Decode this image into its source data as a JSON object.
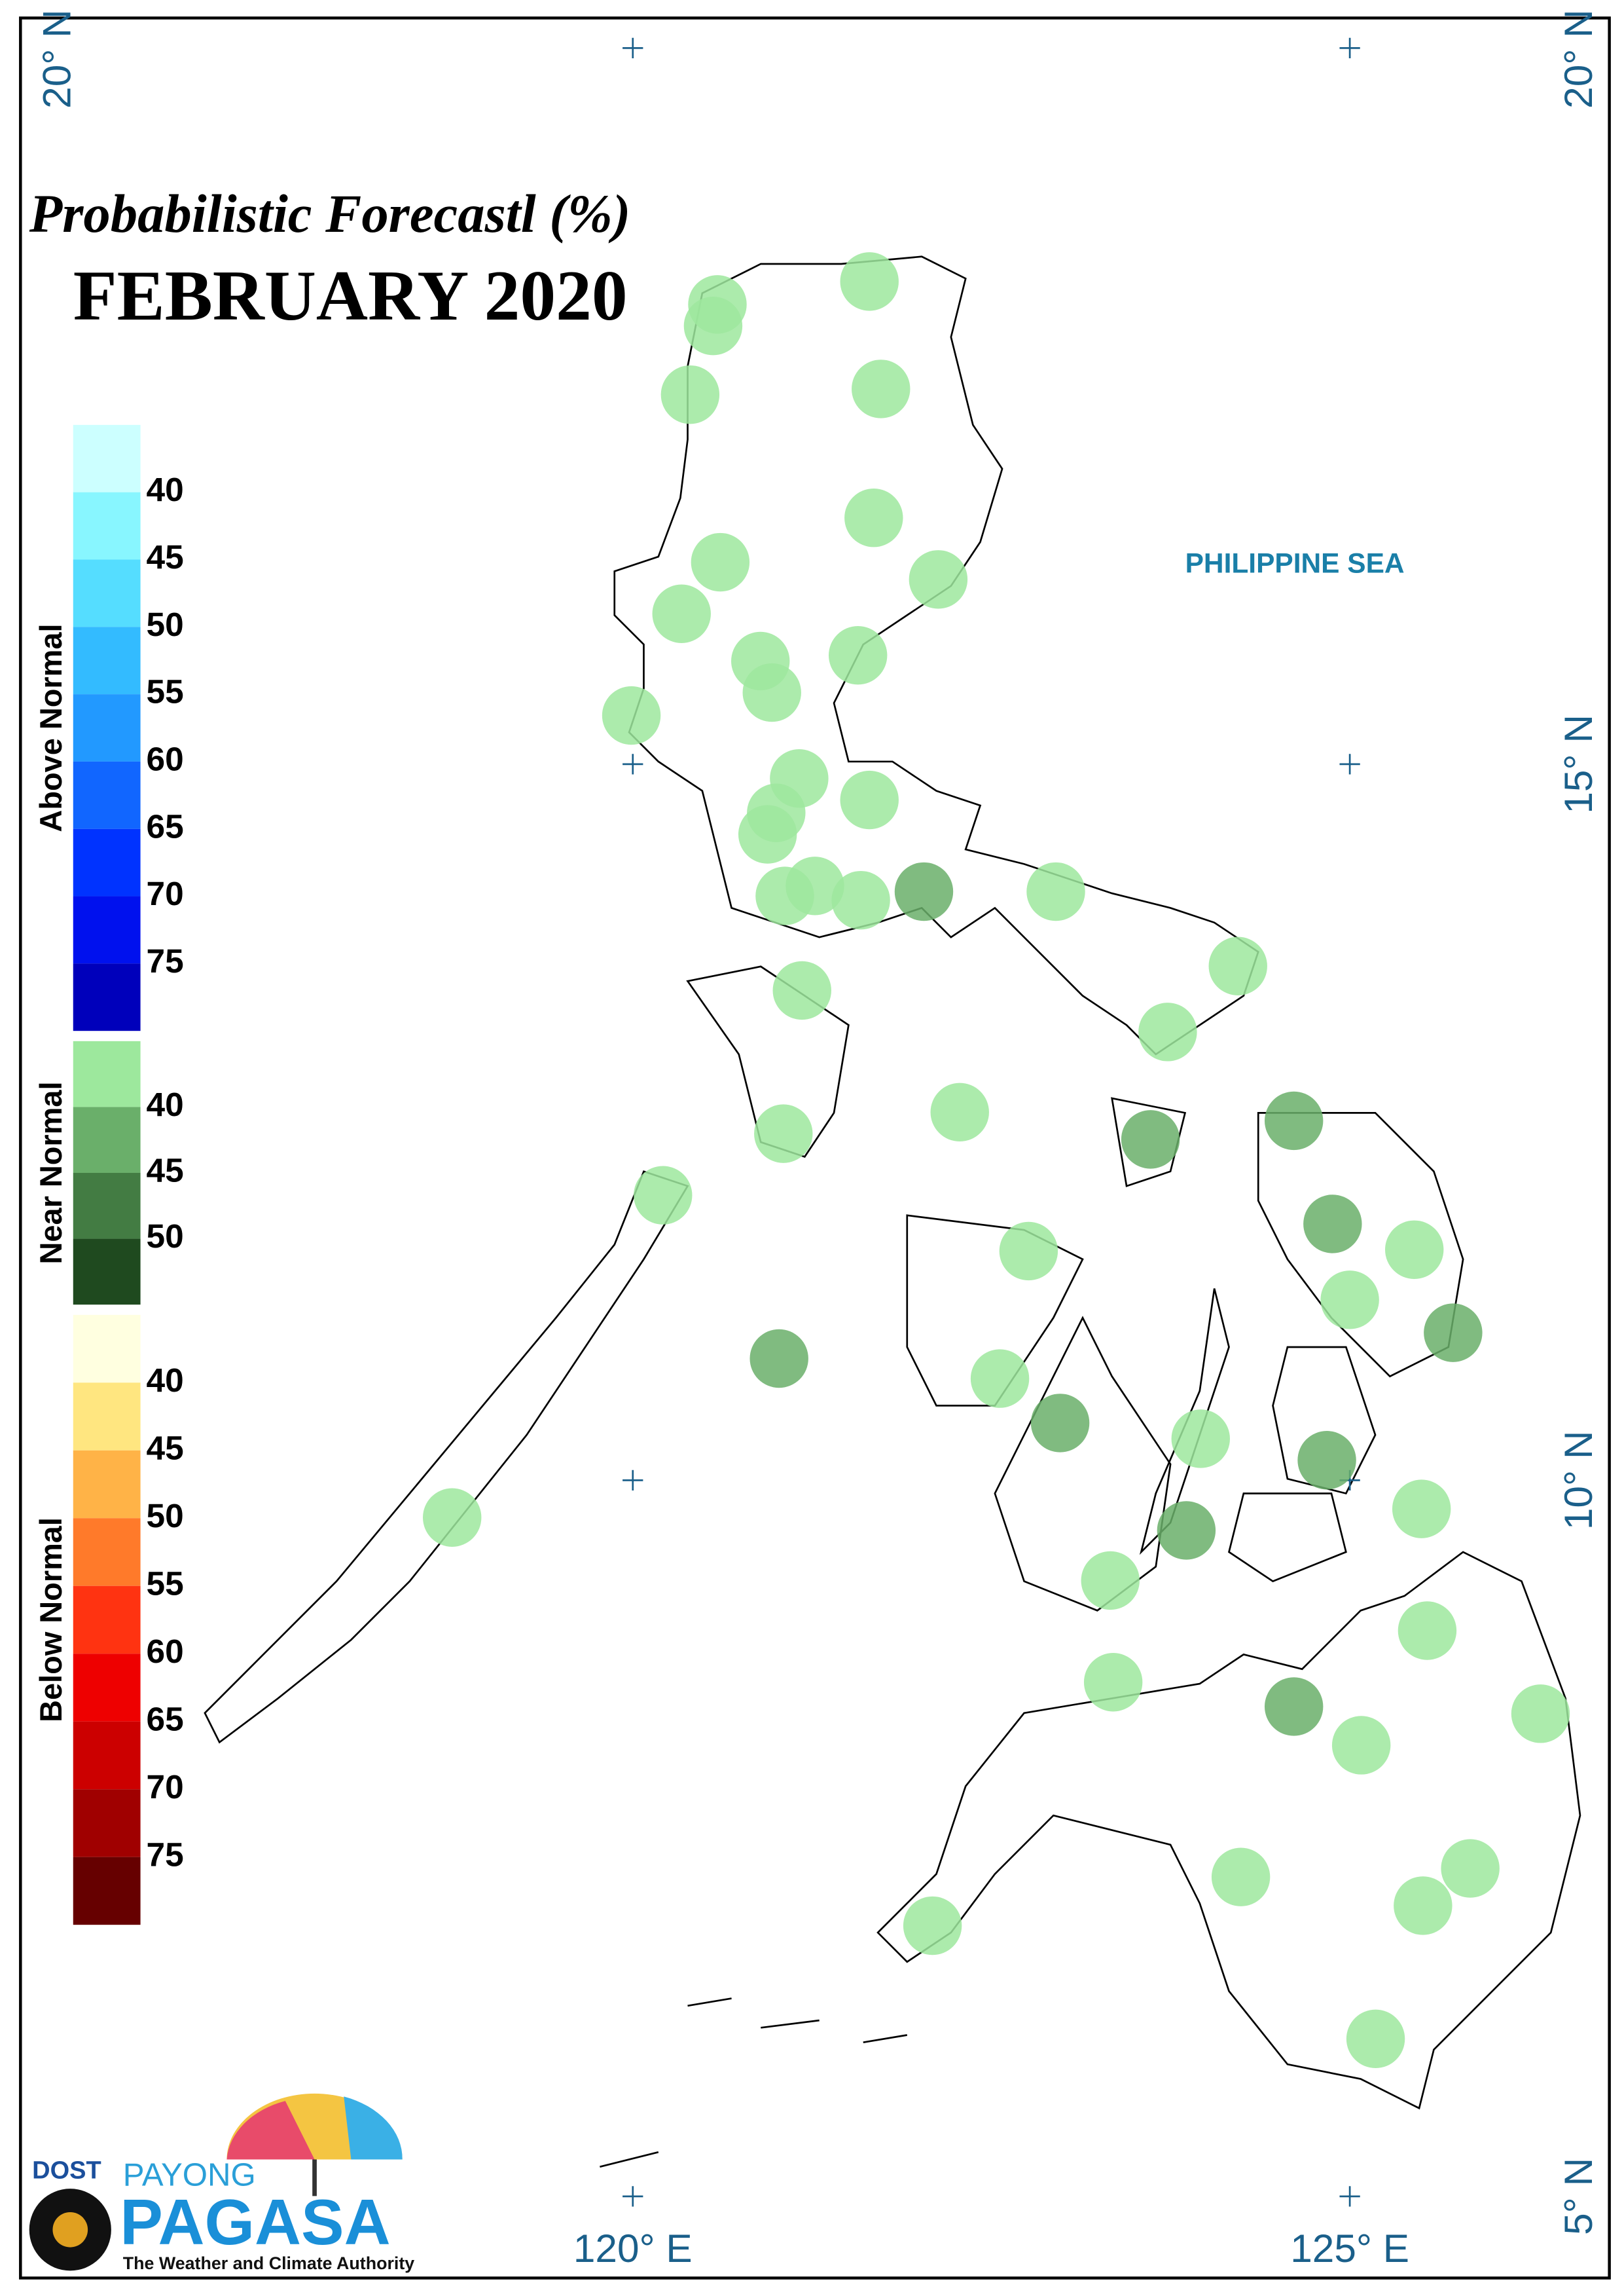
{
  "chart_data": {
    "type": "map",
    "title": "Probabilistic Forecastl (%)",
    "subtitle": "FEBRUARY 2020",
    "annotations": [
      "PHILIPPINE SEA"
    ],
    "xlim": [
      115.73,
      126.81
    ],
    "ylim": [
      4.43,
      20.21
    ],
    "xticks": [
      {
        "value": 120,
        "label": "120° E"
      },
      {
        "value": 125,
        "label": "125° E"
      }
    ],
    "yticks": [
      {
        "value": 5,
        "label": "5° N"
      },
      {
        "value": 10,
        "label": "10° N"
      },
      {
        "value": 15,
        "label": "15° N"
      },
      {
        "value": 20,
        "label": "20° N"
      }
    ],
    "legend": [
      {
        "name": "Above Normal",
        "colors": [
          "#ccffff",
          "#88f6ff",
          "#55ddff",
          "#33bbff",
          "#2299ff",
          "#1166ff",
          "#0033ff",
          "#0011ee",
          "#0000bb"
        ],
        "labels": [
          40,
          45,
          50,
          55,
          60,
          65,
          70,
          75
        ]
      },
      {
        "name": "Near Normal",
        "colors": [
          "#9de89d",
          "#6aaf6a",
          "#437c43",
          "#1f4a1f"
        ],
        "labels": [
          40,
          45,
          50
        ]
      },
      {
        "name": "Below Normal",
        "colors": [
          "#ffffe0",
          "#ffe680",
          "#ffb347",
          "#ff7a2a",
          "#ff3311",
          "#ee0000",
          "#cc0000",
          "#a00000",
          "#660000"
        ],
        "labels": [
          40,
          45,
          50,
          55,
          60,
          65,
          70,
          75
        ]
      }
    ],
    "points": [
      {
        "lon": 120.59,
        "lat": 18.21,
        "value": 40
      },
      {
        "lon": 120.56,
        "lat": 18.06,
        "value": 40
      },
      {
        "lon": 121.65,
        "lat": 18.37,
        "value": 40
      },
      {
        "lon": 120.4,
        "lat": 17.58,
        "value": 40
      },
      {
        "lon": 121.73,
        "lat": 17.62,
        "value": 40
      },
      {
        "lon": 121.68,
        "lat": 16.72,
        "value": 40
      },
      {
        "lon": 120.61,
        "lat": 16.41,
        "value": 40
      },
      {
        "lon": 122.13,
        "lat": 16.29,
        "value": 40
      },
      {
        "lon": 120.34,
        "lat": 16.05,
        "value": 40
      },
      {
        "lon": 120.89,
        "lat": 15.72,
        "value": 40
      },
      {
        "lon": 121.57,
        "lat": 15.76,
        "value": 40
      },
      {
        "lon": 120.97,
        "lat": 15.5,
        "value": 40
      },
      {
        "lon": 119.99,
        "lat": 15.34,
        "value": 40
      },
      {
        "lon": 121.16,
        "lat": 14.9,
        "value": 40
      },
      {
        "lon": 121.65,
        "lat": 14.75,
        "value": 40
      },
      {
        "lon": 121.0,
        "lat": 14.66,
        "value": 40
      },
      {
        "lon": 120.94,
        "lat": 14.51,
        "value": 40
      },
      {
        "lon": 121.27,
        "lat": 14.15,
        "value": 40
      },
      {
        "lon": 121.06,
        "lat": 14.08,
        "value": 40
      },
      {
        "lon": 121.59,
        "lat": 14.05,
        "value": 40
      },
      {
        "lon": 122.95,
        "lat": 14.11,
        "value": 40
      },
      {
        "lon": 124.22,
        "lat": 13.59,
        "value": 40
      },
      {
        "lon": 121.18,
        "lat": 13.42,
        "value": 40
      },
      {
        "lon": 123.73,
        "lat": 13.13,
        "value": 40
      },
      {
        "lon": 122.28,
        "lat": 12.57,
        "value": 40
      },
      {
        "lon": 121.05,
        "lat": 12.42,
        "value": 40
      },
      {
        "lon": 120.21,
        "lat": 11.99,
        "value": 40
      },
      {
        "lon": 122.76,
        "lat": 11.6,
        "value": 40
      },
      {
        "lon": 125.45,
        "lat": 11.61,
        "value": 40
      },
      {
        "lon": 125.0,
        "lat": 11.26,
        "value": 40
      },
      {
        "lon": 122.56,
        "lat": 10.71,
        "value": 40
      },
      {
        "lon": 123.96,
        "lat": 10.29,
        "value": 40
      },
      {
        "lon": 125.5,
        "lat": 9.8,
        "value": 40
      },
      {
        "lon": 118.74,
        "lat": 9.74,
        "value": 40
      },
      {
        "lon": 123.33,
        "lat": 9.3,
        "value": 40
      },
      {
        "lon": 125.54,
        "lat": 8.95,
        "value": 40
      },
      {
        "lon": 123.35,
        "lat": 8.59,
        "value": 40
      },
      {
        "lon": 126.33,
        "lat": 8.37,
        "value": 40
      },
      {
        "lon": 125.08,
        "lat": 8.15,
        "value": 40
      },
      {
        "lon": 124.24,
        "lat": 7.23,
        "value": 40
      },
      {
        "lon": 125.84,
        "lat": 7.29,
        "value": 40
      },
      {
        "lon": 125.51,
        "lat": 7.03,
        "value": 40
      },
      {
        "lon": 122.09,
        "lat": 6.89,
        "value": 40
      },
      {
        "lon": 125.18,
        "lat": 6.1,
        "value": 40
      },
      {
        "lon": 122.03,
        "lat": 14.11,
        "value": 45
      },
      {
        "lon": 123.61,
        "lat": 12.38,
        "value": 45
      },
      {
        "lon": 124.61,
        "lat": 12.51,
        "value": 45
      },
      {
        "lon": 124.88,
        "lat": 11.79,
        "value": 45
      },
      {
        "lon": 121.02,
        "lat": 10.85,
        "value": 45
      },
      {
        "lon": 125.72,
        "lat": 11.03,
        "value": 45
      },
      {
        "lon": 122.98,
        "lat": 10.4,
        "value": 45
      },
      {
        "lon": 124.84,
        "lat": 10.14,
        "value": 45
      },
      {
        "lon": 123.86,
        "lat": 9.65,
        "value": 45
      },
      {
        "lon": 124.61,
        "lat": 8.42,
        "value": 45
      }
    ]
  },
  "logo": {
    "dost": "DOST",
    "payong": "PAYONG",
    "pagasa": "PAGASA",
    "tagline": "The Weather and Climate Authority"
  }
}
